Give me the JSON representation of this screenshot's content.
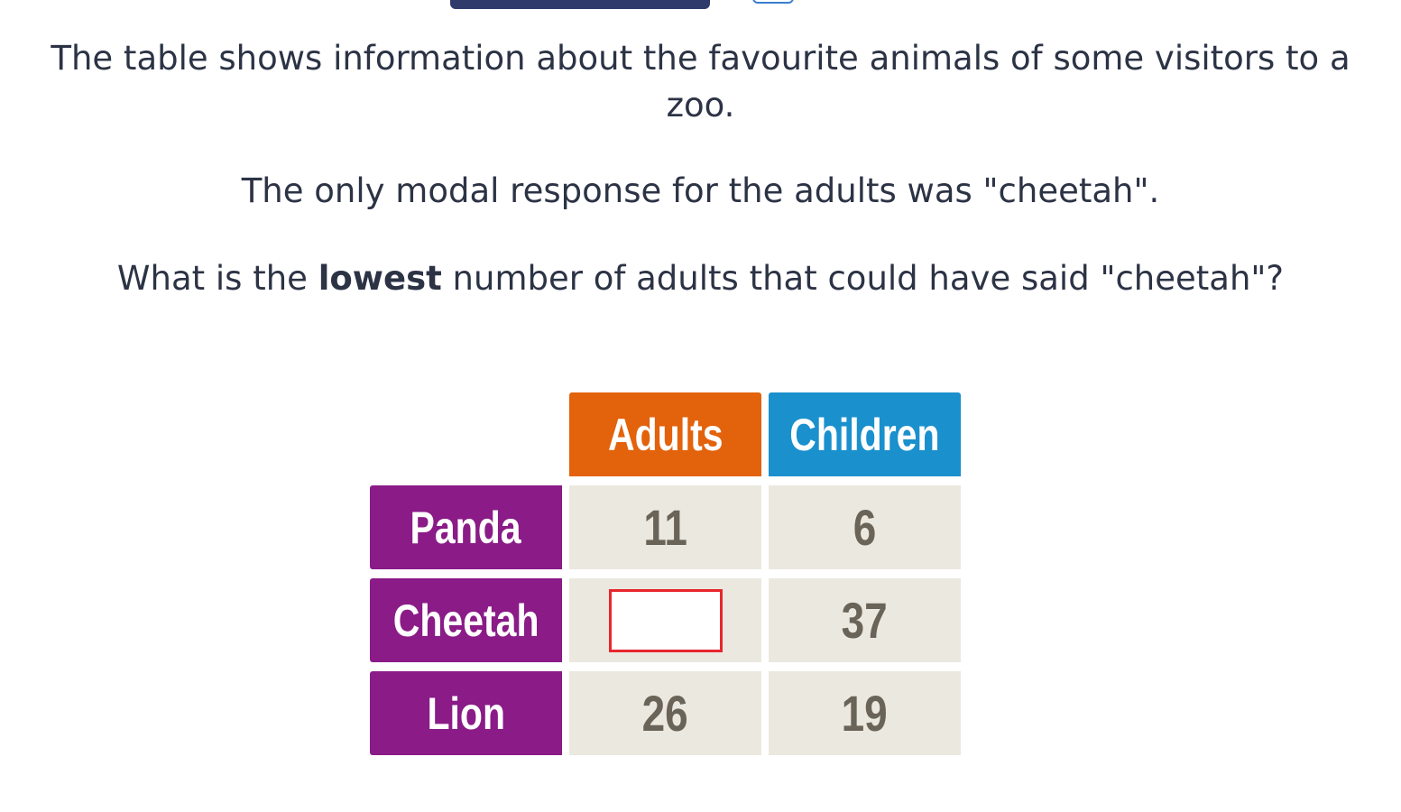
{
  "question": {
    "intro_line1": "The table shows information about the favourite animals of some visitors to a",
    "intro_line2": "zoo.",
    "modal_statement": "The only modal response for the adults was \"cheetah\".",
    "prompt_before": "What is the ",
    "prompt_bold": "lowest",
    "prompt_after": " number of adults that could have said \"cheetah\"?"
  },
  "table": {
    "columns": [
      "Adults",
      "Children"
    ],
    "rows": [
      {
        "label": "Panda",
        "adults": "11",
        "children": "6"
      },
      {
        "label": "Cheetah",
        "adults": "",
        "children": "37"
      },
      {
        "label": "Lion",
        "adults": "26",
        "children": "19"
      }
    ],
    "answer_value": ""
  },
  "colors": {
    "adults_header": "#e3620c",
    "children_header": "#1a90cd",
    "row_label": "#8a1b87",
    "value_cell": "#ebe8e0",
    "answer_border": "#e8262e"
  }
}
